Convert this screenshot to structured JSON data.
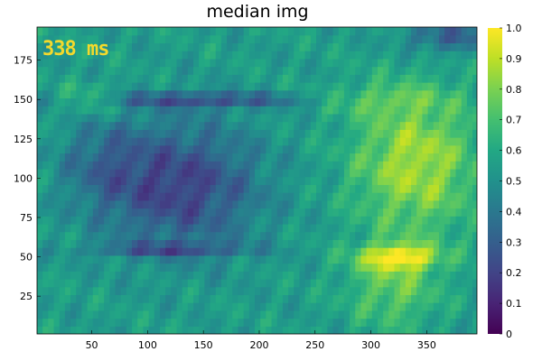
{
  "chart_data": {
    "type": "heatmap",
    "title": "median img",
    "xlabel": "",
    "ylabel": "",
    "xlim": [
      1,
      395
    ],
    "ylim": [
      1,
      196
    ],
    "x_ticks": [
      "50",
      "100",
      "150",
      "200",
      "250",
      "300",
      "350"
    ],
    "y_ticks": [
      "25",
      "50",
      "75",
      "100",
      "125",
      "150",
      "175"
    ],
    "colorbar": {
      "colormap": "viridis",
      "range": [
        0,
        1
      ],
      "ticks": [
        "0",
        "0.1",
        "0.2",
        "0.3",
        "0.4",
        "0.5",
        "0.6",
        "0.7",
        "0.8",
        "0.9",
        "1.0"
      ]
    },
    "annotation": "338 ms",
    "grid": false,
    "colors": {
      "viridis_low": "#440154",
      "viridis_mid": "#21918c",
      "viridis_high": "#fde725",
      "annotation_color": "#f3d92c"
    },
    "regions": [
      {
        "description": "bright right-middle",
        "x_range": [
          275,
          395
        ],
        "y_range": [
          60,
          150
        ],
        "approx_value": 0.85
      },
      {
        "description": "dark left-center",
        "x_range": [
          70,
          200
        ],
        "y_range": [
          60,
          130
        ],
        "approx_value": 0.2
      },
      {
        "description": "dark band",
        "x_range": [
          40,
          250
        ],
        "y_range": [
          145,
          160
        ],
        "approx_value": 0.25
      },
      {
        "description": "bright band",
        "x_range": [
          280,
          395
        ],
        "y_range": [
          40,
          60
        ],
        "approx_value": 0.95
      }
    ]
  }
}
